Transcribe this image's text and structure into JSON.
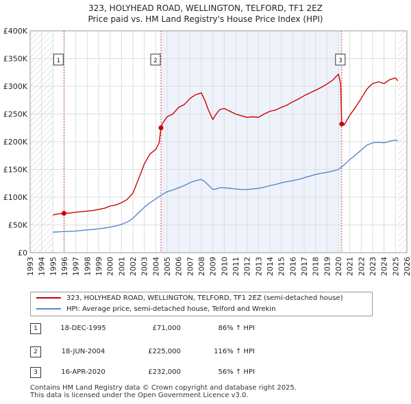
{
  "chart_data": {
    "type": "line",
    "title_line1": "323, HOLYHEAD ROAD, WELLINGTON, TELFORD, TF1 2EZ",
    "title_line2": "Price paid vs. HM Land Registry's House Price Index (HPI)",
    "xlim": [
      1993,
      2026
    ],
    "ylim": [
      0,
      400000
    ],
    "x_ticks": [
      1993,
      1994,
      1995,
      1996,
      1997,
      1998,
      1999,
      2000,
      2001,
      2002,
      2003,
      2004,
      2005,
      2006,
      2007,
      2008,
      2009,
      2010,
      2011,
      2012,
      2013,
      2014,
      2015,
      2016,
      2017,
      2018,
      2019,
      2020,
      2021,
      2022,
      2023,
      2024,
      2025,
      2026
    ],
    "y_ticks": [
      {
        "value": 0,
        "label": "£0"
      },
      {
        "value": 50000,
        "label": "£50K"
      },
      {
        "value": 100000,
        "label": "£100K"
      },
      {
        "value": 150000,
        "label": "£150K"
      },
      {
        "value": 200000,
        "label": "£200K"
      },
      {
        "value": 250000,
        "label": "£250K"
      },
      {
        "value": 300000,
        "label": "£300K"
      },
      {
        "value": 350000,
        "label": "£350K"
      },
      {
        "value": 400000,
        "label": "£400K"
      }
    ],
    "hatched_ranges": [
      [
        1993,
        1995.0
      ],
      [
        2025.25,
        2026
      ]
    ],
    "series": [
      {
        "name": "323, HOLYHEAD ROAD, WELLINGTON, TELFORD, TF1 2EZ (semi-detached house)",
        "color": "#cc0000",
        "x": [
          1995.0,
          1995.5,
          1995.96,
          1996.5,
          1997,
          1997.5,
          1998,
          1998.5,
          1999,
          1999.5,
          2000,
          2000.5,
          2001,
          2001.5,
          2002,
          2002.5,
          2003,
          2003.5,
          2004.0,
          2004.3,
          2004.46,
          2004.6,
          2005,
          2005.5,
          2006,
          2006.5,
          2007,
          2007.5,
          2008,
          2008.3,
          2008.6,
          2009,
          2009.3,
          2009.6,
          2010,
          2010.5,
          2011,
          2011.5,
          2012,
          2012.5,
          2013,
          2013.5,
          2014,
          2014.5,
          2015,
          2015.5,
          2016,
          2016.5,
          2017,
          2017.5,
          2018,
          2018.5,
          2019,
          2019.5,
          2020.0,
          2020.2,
          2020.29,
          2020.5,
          2021,
          2021.5,
          2022,
          2022.5,
          2023,
          2023.5,
          2024,
          2024.5,
          2025,
          2025.2
        ],
        "y": [
          68000,
          70000,
          71000,
          71500,
          73000,
          74000,
          75000,
          76000,
          78000,
          80000,
          84000,
          86000,
          90000,
          96000,
          107000,
          133000,
          160000,
          178000,
          186000,
          198000,
          225000,
          233000,
          245000,
          250000,
          262000,
          267000,
          278000,
          285000,
          288000,
          275000,
          258000,
          240000,
          250000,
          258000,
          260000,
          255000,
          250000,
          247000,
          244000,
          245000,
          244000,
          250000,
          255000,
          257000,
          262000,
          266000,
          272000,
          277000,
          283000,
          288000,
          293000,
          298000,
          304000,
          311000,
          322000,
          305000,
          232000,
          230000,
          248000,
          262000,
          278000,
          295000,
          305000,
          308000,
          305000,
          312000,
          315000,
          310000
        ]
      },
      {
        "name": "HPI: Average price, semi-detached house, Telford and Wrekin",
        "color": "#5588cc",
        "x": [
          1995.0,
          1995.5,
          1996,
          1996.5,
          1997,
          1997.5,
          1998,
          1998.5,
          1999,
          1999.5,
          2000,
          2000.5,
          2001,
          2001.5,
          2002,
          2002.5,
          2003,
          2003.5,
          2004,
          2004.5,
          2005,
          2005.5,
          2006,
          2006.5,
          2007,
          2007.5,
          2008,
          2008.3,
          2008.6,
          2009,
          2009.3,
          2009.6,
          2010,
          2010.5,
          2011,
          2011.5,
          2012,
          2012.5,
          2013,
          2013.5,
          2014,
          2014.5,
          2015,
          2015.5,
          2016,
          2016.5,
          2017,
          2017.5,
          2018,
          2018.5,
          2019,
          2019.5,
          2020,
          2020.5,
          2021,
          2021.5,
          2022,
          2022.5,
          2023,
          2023.5,
          2024,
          2024.5,
          2025,
          2025.2
        ],
        "y": [
          37000,
          37500,
          38000,
          38500,
          39000,
          40000,
          41000,
          42000,
          43000,
          44500,
          46000,
          48000,
          51000,
          55000,
          62000,
          72000,
          82000,
          90000,
          97000,
          104000,
          110000,
          113000,
          117000,
          121000,
          126000,
          130000,
          132000,
          128000,
          122000,
          114000,
          115000,
          117000,
          117000,
          116000,
          115000,
          114000,
          114000,
          115000,
          116000,
          118000,
          121000,
          123000,
          126000,
          128000,
          130000,
          132000,
          135000,
          138000,
          141000,
          143000,
          145000,
          147000,
          150000,
          158000,
          168000,
          176000,
          185000,
          194000,
          198000,
          199000,
          198000,
          201000,
          203000,
          202000
        ]
      }
    ],
    "sale_markers": [
      {
        "label": "1",
        "x": 1995.96,
        "y": 71000
      },
      {
        "label": "2",
        "x": 2004.46,
        "y": 225000
      },
      {
        "label": "3",
        "x": 2020.29,
        "y": 232000
      }
    ]
  },
  "legend": {
    "entries": [
      {
        "label": "323, HOLYHEAD ROAD, WELLINGTON, TELFORD, TF1 2EZ (semi-detached house)",
        "color": "#cc0000"
      },
      {
        "label": "HPI: Average price, semi-detached house, Telford and Wrekin",
        "color": "#5588cc"
      }
    ]
  },
  "sales": [
    {
      "num": "1",
      "date": "18-DEC-1995",
      "price": "£71,000",
      "hpi": "86% ↑ HPI"
    },
    {
      "num": "2",
      "date": "18-JUN-2004",
      "price": "£225,000",
      "hpi": "116% ↑ HPI"
    },
    {
      "num": "3",
      "date": "16-APR-2020",
      "price": "£232,000",
      "hpi": "56% ↑ HPI"
    }
  ],
  "footer": {
    "line1": "Contains HM Land Registry data © Crown copyright and database right 2025.",
    "line2": "This data is licensed under the Open Government Licence v3.0."
  }
}
